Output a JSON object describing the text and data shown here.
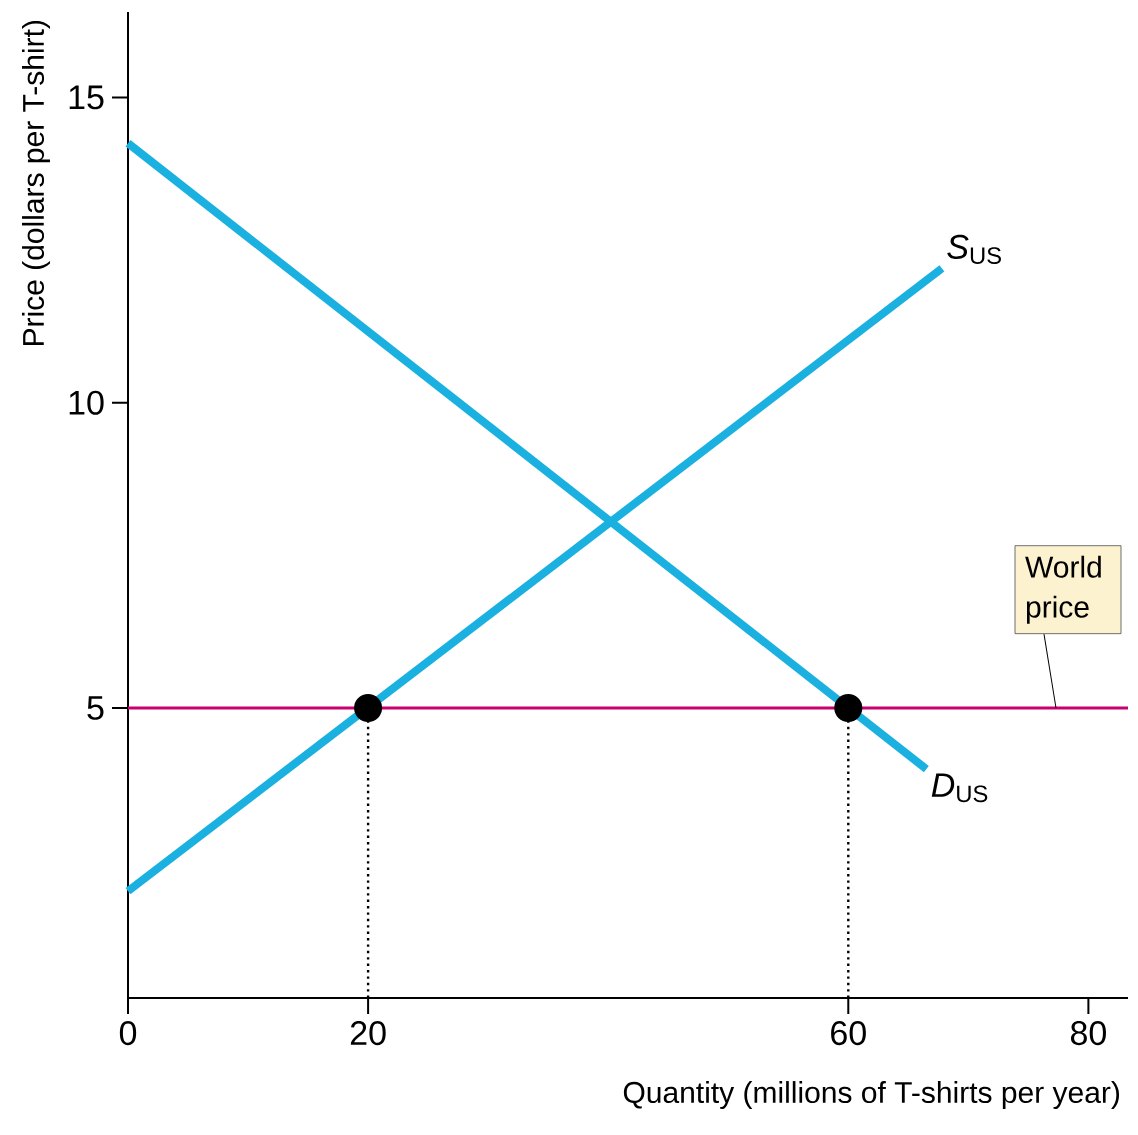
{
  "chart_data": {
    "type": "line",
    "xlabel": "Quantity (millions of T-shirts per year)",
    "ylabel": "Price (dollars per T-shirt)",
    "xlim": [
      0,
      83.3
    ],
    "ylim": [
      0.25,
      16.4
    ],
    "xticks": [
      0,
      20,
      60,
      80
    ],
    "yticks": [
      5,
      10,
      15
    ],
    "grid": false,
    "series": [
      {
        "name": "*S*$_{US}$",
        "color": "#1ab0e0",
        "x": [
          0,
          67.8
        ],
        "values": [
          2,
          12.2
        ]
      },
      {
        "name": "*D*$_{US}$",
        "color": "#1ab0e0",
        "x": [
          0,
          66.5
        ],
        "values": [
          14.25,
          4
        ]
      },
      {
        "type": "line",
        "line_style": "dotted",
        "color": "#000000",
        "x": [
          20,
          20
        ],
        "values": [
          0.25,
          5
        ]
      },
      {
        "type": "line",
        "line_style": "dotted",
        "color": "#000000",
        "x": [
          60,
          60
        ],
        "values": [
          0.25,
          5
        ]
      },
      {
        "type": "scatter",
        "marker": "circle",
        "color": "#000000",
        "x": [
          20,
          60
        ],
        "values": [
          5,
          5
        ]
      }
    ],
    "ref_lines": [
      {
        "axis": "y",
        "value": 5,
        "label": "World price",
        "color": "#c8006e"
      }
    ]
  }
}
